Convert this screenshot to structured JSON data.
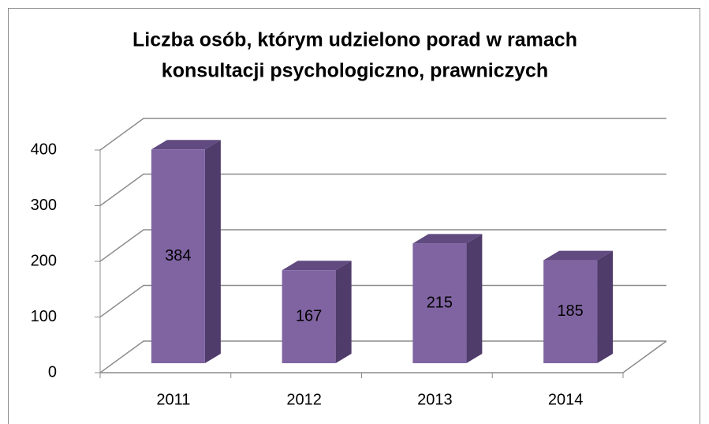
{
  "chart_data": {
    "type": "bar3d",
    "title": [
      "Liczba osób, którym udzielono porad w ramach",
      "konsultacji psychologiczno, prawniczych"
    ],
    "categories": [
      "2011",
      "2012",
      "2013",
      "2014"
    ],
    "values": [
      384,
      167,
      215,
      185
    ],
    "color": "#8064a2",
    "ylim": [
      0,
      400
    ],
    "yticks": [
      0,
      100,
      200,
      300,
      400
    ],
    "grid": true
  }
}
